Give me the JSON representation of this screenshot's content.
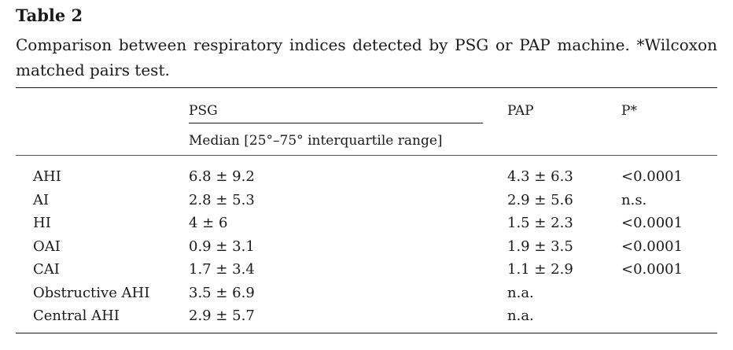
{
  "table": {
    "title": "Table 2",
    "caption": "Comparison between respiratory indices detected by PSG or PAP machine. *Wilcoxon matched pairs test.",
    "headers": {
      "psg": "PSG",
      "psg_sub": "Median [25°–75° interquartile range]",
      "pap": "PAP",
      "p": "P*"
    },
    "rows": [
      {
        "label": "AHI",
        "psg": "6.8 ± 9.2",
        "pap": "4.3 ± 6.3",
        "p": "<0.0001"
      },
      {
        "label": "AI",
        "psg": "2.8 ± 5.3",
        "pap": "2.9 ± 5.6",
        "p": "n.s."
      },
      {
        "label": "HI",
        "psg": "4 ± 6",
        "pap": "1.5 ± 2.3",
        "p": "<0.0001"
      },
      {
        "label": "OAI",
        "psg": "0.9 ± 3.1",
        "pap": "1.9 ± 3.5",
        "p": "<0.0001"
      },
      {
        "label": "CAI",
        "psg": "1.7 ± 3.4",
        "pap": "1.1 ± 2.9",
        "p": "<0.0001"
      },
      {
        "label": "Obstructive AHI",
        "psg": "3.5 ± 6.9",
        "pap": "n.a.",
        "p": ""
      },
      {
        "label": "Central AHI",
        "psg": "2.9 ± 5.7",
        "pap": "n.a.",
        "p": ""
      }
    ]
  }
}
